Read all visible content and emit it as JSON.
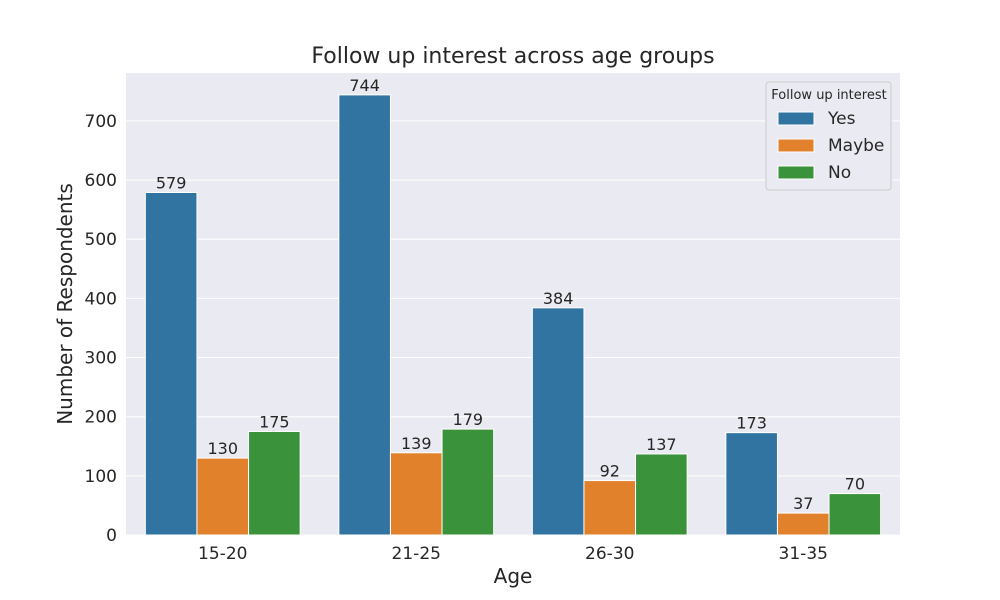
{
  "chart_data": {
    "type": "bar",
    "title": "Follow up interest across age groups",
    "xlabel": "Age",
    "ylabel": "Number of Respondents",
    "categories": [
      "15-20",
      "21-25",
      "26-30",
      "31-35"
    ],
    "series": [
      {
        "name": "Yes",
        "values": [
          579,
          744,
          384,
          173
        ],
        "color": "#3274a1"
      },
      {
        "name": "Maybe",
        "values": [
          130,
          139,
          92,
          37
        ],
        "color": "#e1812c"
      },
      {
        "name": "No",
        "values": [
          175,
          179,
          137,
          70
        ],
        "color": "#3a923a"
      }
    ],
    "ylim": [
      0,
      781
    ],
    "yticks": [
      0,
      100,
      200,
      300,
      400,
      500,
      600,
      700
    ],
    "grid": true,
    "legend": {
      "title": "Follow up interest",
      "placement": "top-right"
    },
    "background_color": "#eaeaf2"
  }
}
